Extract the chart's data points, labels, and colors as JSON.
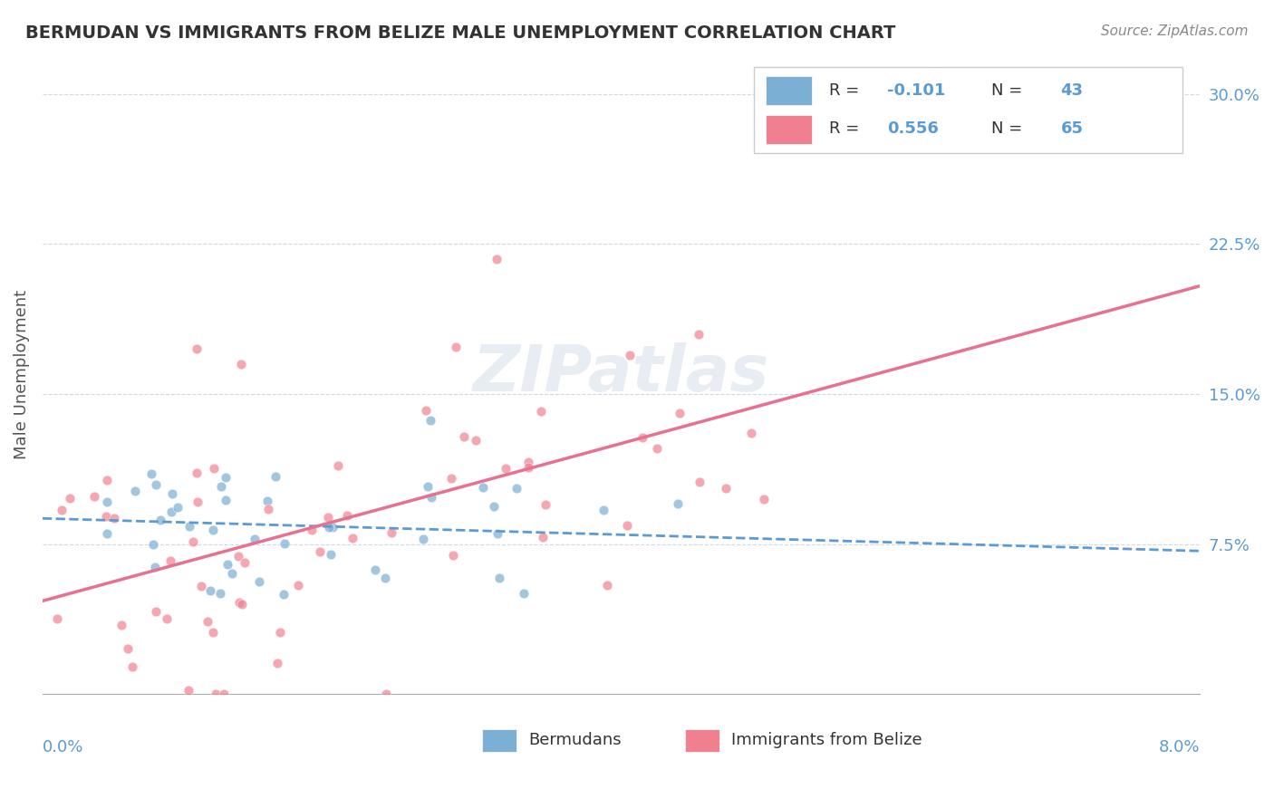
{
  "title": "BERMUDAN VS IMMIGRANTS FROM BELIZE MALE UNEMPLOYMENT CORRELATION CHART",
  "source": "Source: ZipAtlas.com",
  "ylabel": "Male Unemployment",
  "xmin": 0.0,
  "xmax": 0.08,
  "ymin": 0.0,
  "ymax": 0.32,
  "yticks": [
    0.075,
    0.15,
    0.225,
    0.3
  ],
  "ytick_labels": [
    "7.5%",
    "15.0%",
    "22.5%",
    "30.0%"
  ],
  "bermudans_color": "#7bafd4",
  "belize_color": "#f08090",
  "trend_bermudans_color": "#5b9bd5",
  "trend_belize_color": "#e87090",
  "watermark": "ZIPatlas",
  "R_bermudans": -0.101,
  "N_bermudans": 43,
  "R_belize": 0.556,
  "N_belize": 65,
  "seed": 42
}
